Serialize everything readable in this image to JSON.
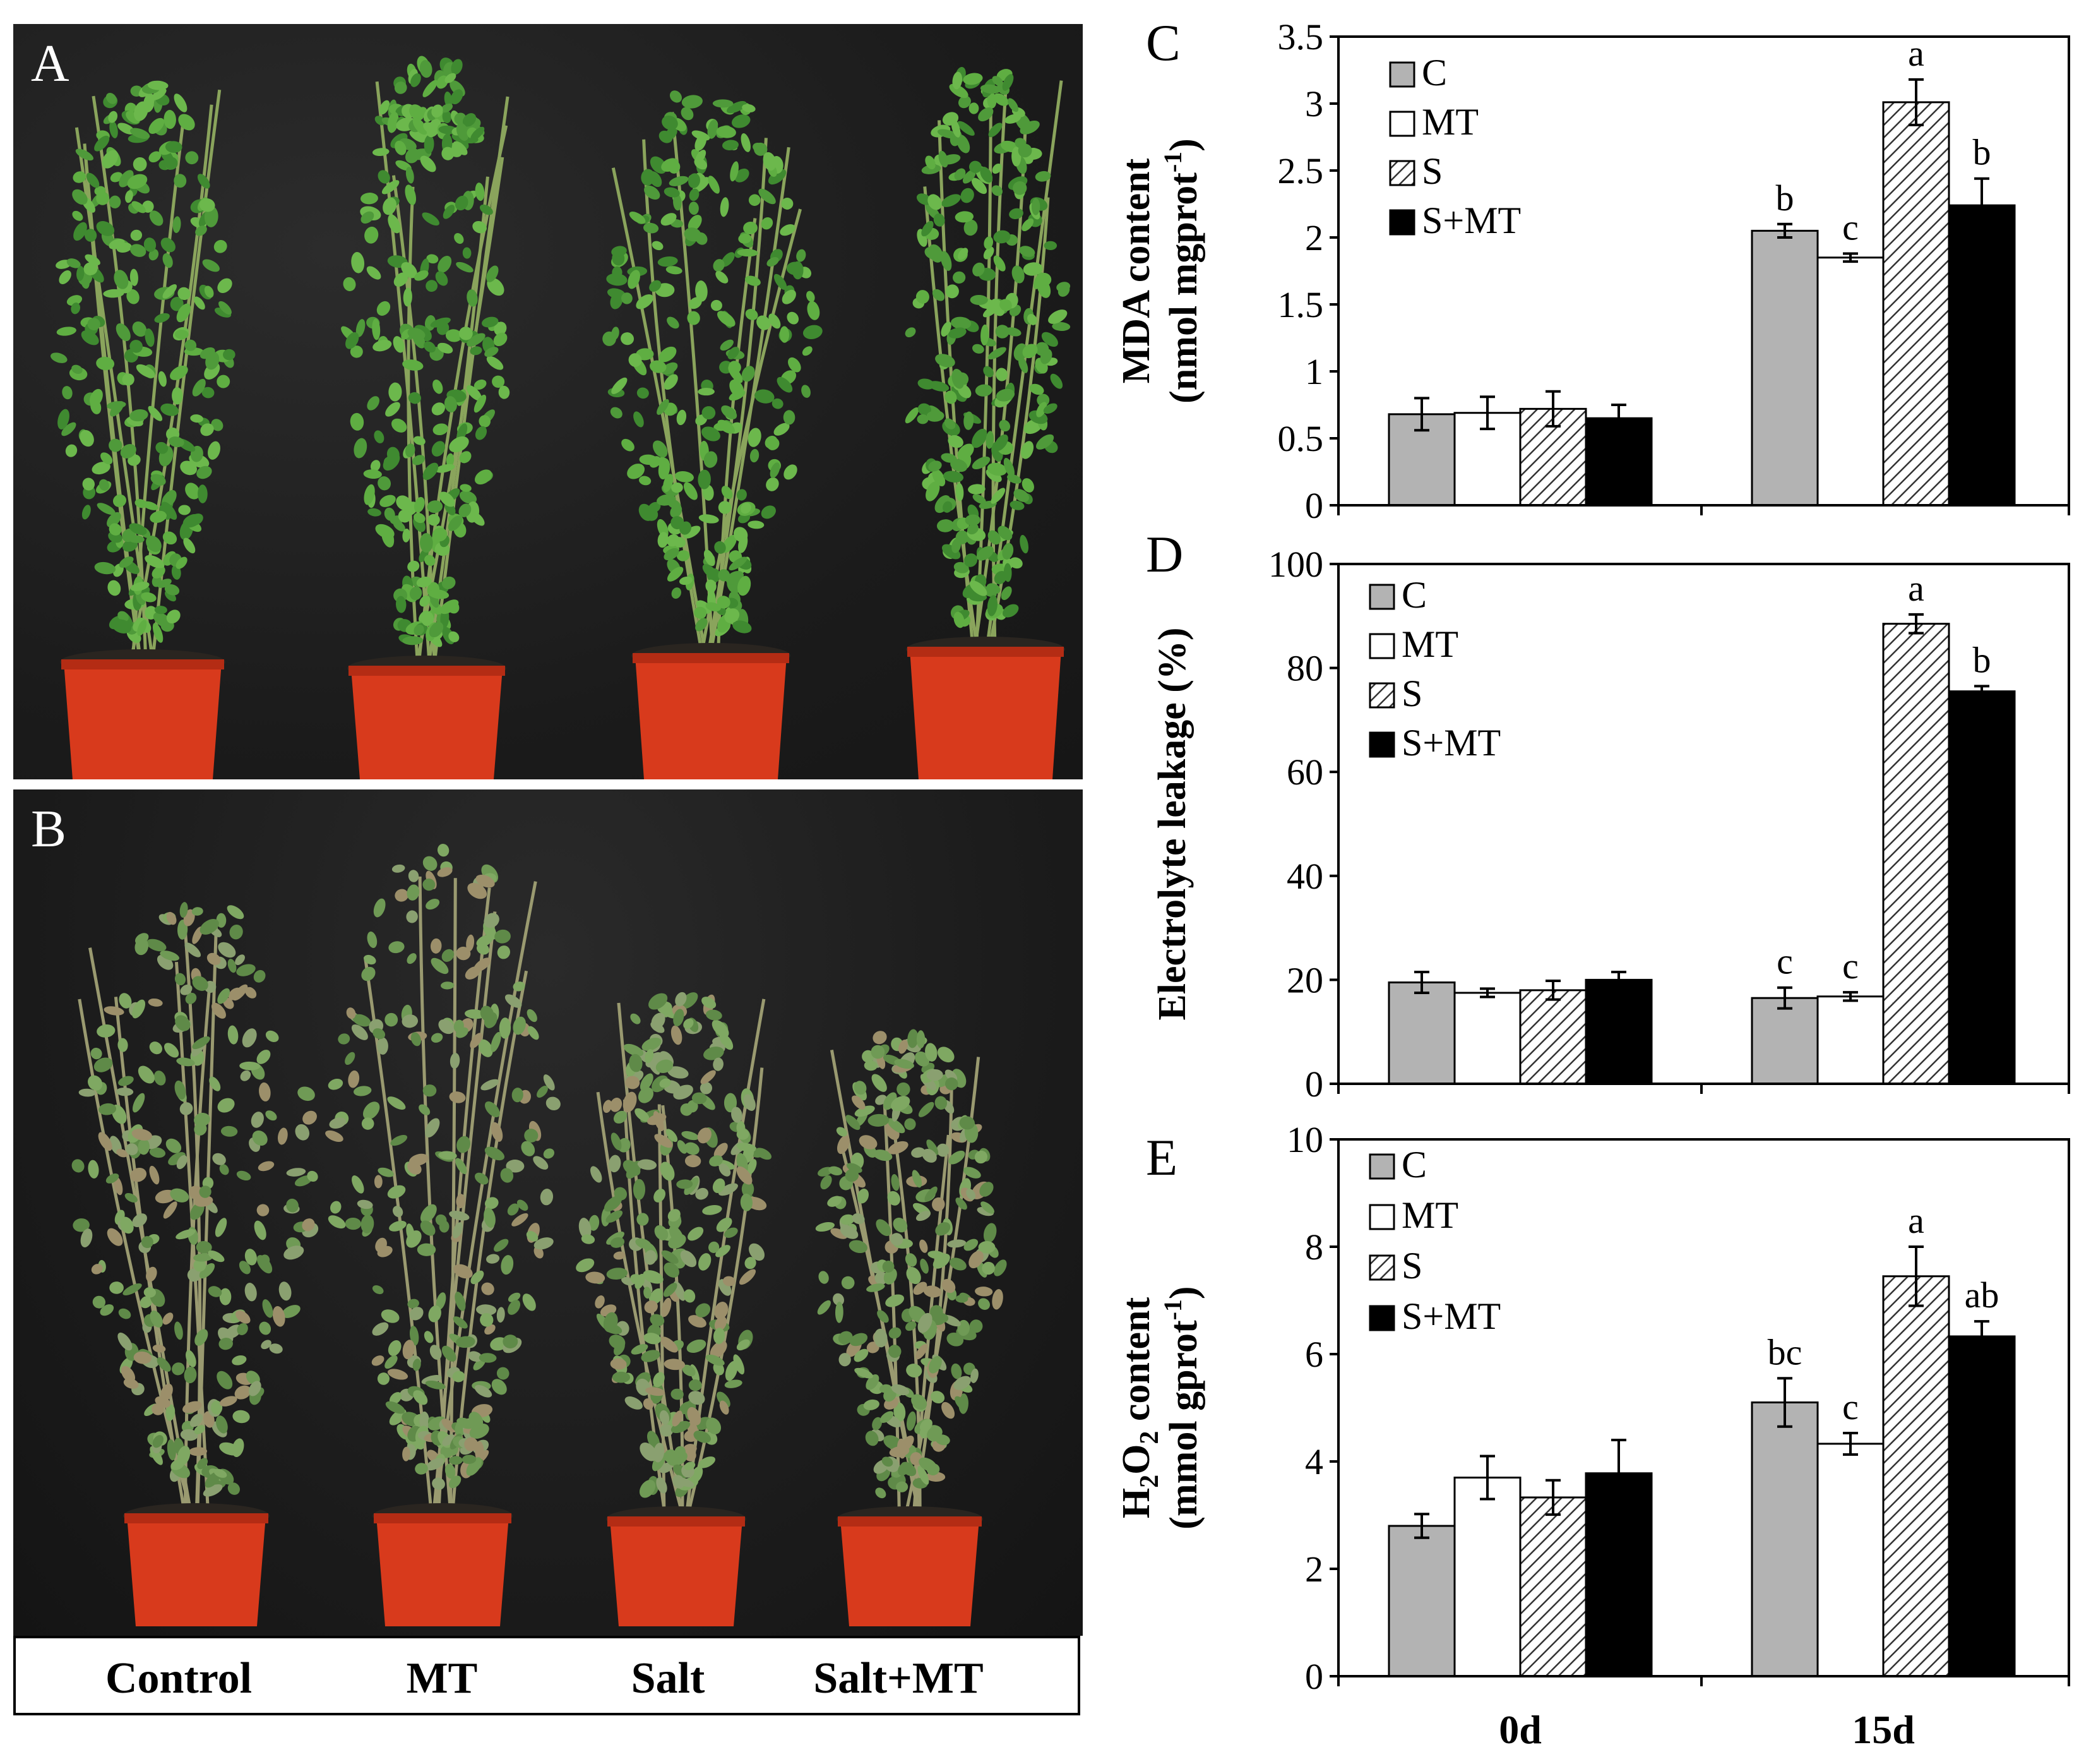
{
  "photos": {
    "a": {
      "letter": "A"
    },
    "b": {
      "letter": "B"
    },
    "treatment_labels": [
      "Control",
      "MT",
      "Salt",
      "Salt+MT"
    ]
  },
  "chart_data": [
    {
      "panel": "C",
      "type": "bar",
      "categories": [
        "0d",
        "15d"
      ],
      "ylabel_line1": "MDA content",
      "ylabel_line2": "(nmol mgprot",
      "ylabel_sup": "-1",
      "ylabel_tail": ")",
      "ylim": [
        0,
        3.5
      ],
      "yticks": [
        "0",
        "0.5",
        "1",
        "1.5",
        "2",
        "2.5",
        "3",
        "3.5"
      ],
      "ytick_values": [
        0,
        0.5,
        1,
        1.5,
        2,
        2.5,
        3,
        3.5
      ],
      "series": [
        {
          "name": "C",
          "values": [
            0.68,
            2.05
          ],
          "errors": [
            0.12,
            0.05
          ],
          "letters": [
            "",
            "b"
          ]
        },
        {
          "name": "MT",
          "values": [
            0.69,
            1.85
          ],
          "errors": [
            0.12,
            0.03
          ],
          "letters": [
            "",
            "c"
          ]
        },
        {
          "name": "S",
          "values": [
            0.72,
            3.01
          ],
          "errors": [
            0.13,
            0.17
          ],
          "letters": [
            "",
            "a"
          ]
        },
        {
          "name": "S+MT",
          "values": [
            0.65,
            2.24
          ],
          "errors": [
            0.1,
            0.2
          ],
          "letters": [
            "",
            "b"
          ]
        }
      ]
    },
    {
      "panel": "D",
      "type": "bar",
      "categories": [
        "0d",
        "15d"
      ],
      "ylabel_line1": "Electrolyte leakage (%)",
      "ylim": [
        0,
        100
      ],
      "yticks": [
        "0",
        "20",
        "40",
        "60",
        "80",
        "100"
      ],
      "ytick_values": [
        0,
        20,
        40,
        60,
        80,
        100
      ],
      "series": [
        {
          "name": "C",
          "values": [
            19.5,
            16.5
          ],
          "errors": [
            2.0,
            2.0
          ],
          "letters": [
            "",
            "c"
          ]
        },
        {
          "name": "MT",
          "values": [
            17.5,
            16.8
          ],
          "errors": [
            0.8,
            0.8
          ],
          "letters": [
            "",
            "c"
          ]
        },
        {
          "name": "S",
          "values": [
            18.0,
            88.5
          ],
          "errors": [
            1.8,
            1.8
          ],
          "letters": [
            "",
            "a"
          ]
        },
        {
          "name": "S+MT",
          "values": [
            20.0,
            75.5
          ],
          "errors": [
            1.5,
            1.0
          ],
          "letters": [
            "",
            "b"
          ]
        }
      ]
    },
    {
      "panel": "E",
      "type": "bar",
      "categories": [
        "0d",
        "15d"
      ],
      "ylabel_line1": "content",
      "ylabel_h2o2": true,
      "ylabel_line2": "(mmol gprot",
      "ylabel_sup": "-1",
      "ylabel_tail": ")",
      "ylim": [
        0,
        10
      ],
      "yticks": [
        "0",
        "2",
        "4",
        "6",
        "8",
        "10"
      ],
      "ytick_values": [
        0,
        2,
        4,
        6,
        8,
        10
      ],
      "series": [
        {
          "name": "C",
          "values": [
            2.8,
            5.1
          ],
          "errors": [
            0.22,
            0.45
          ],
          "letters": [
            "",
            "bc"
          ]
        },
        {
          "name": "MT",
          "values": [
            3.7,
            4.33
          ],
          "errors": [
            0.4,
            0.2
          ],
          "letters": [
            "",
            "c"
          ]
        },
        {
          "name": "S",
          "values": [
            3.33,
            7.45
          ],
          "errors": [
            0.32,
            0.55
          ],
          "letters": [
            "",
            "a"
          ]
        },
        {
          "name": "S+MT",
          "values": [
            3.78,
            6.33
          ],
          "errors": [
            0.62,
            0.28
          ],
          "letters": [
            "",
            "ab"
          ]
        }
      ]
    }
  ]
}
